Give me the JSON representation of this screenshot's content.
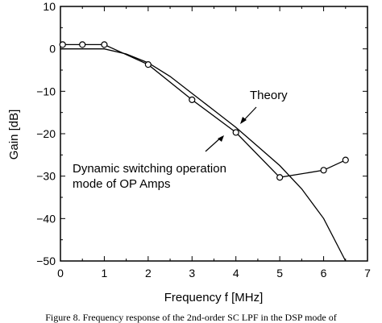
{
  "chart_data": {
    "type": "line",
    "xlabel": "Frequency f [MHz]",
    "ylabel": "Gain [dB]",
    "xlim": [
      0,
      7
    ],
    "ylim": [
      -50,
      10
    ],
    "xticks": [
      0,
      1,
      2,
      3,
      4,
      5,
      6,
      7
    ],
    "yticks": [
      10,
      0,
      -10,
      -20,
      -30,
      -40,
      -50
    ],
    "series": [
      {
        "name": "Theory",
        "marker": "none",
        "x": [
          0,
          0.5,
          1,
          1.5,
          2,
          2.5,
          3,
          3.5,
          4,
          4.5,
          5,
          5.5,
          6,
          6.5
        ],
        "y": [
          0,
          0,
          0,
          -1.2,
          -3.3,
          -6.5,
          -10.5,
          -14.5,
          -18.5,
          -23,
          -27.5,
          -33,
          -40,
          -50
        ]
      },
      {
        "name": "Dynamic switching operation mode of OP Amps",
        "marker": "circle",
        "x": [
          0.05,
          0.5,
          1,
          2,
          3,
          4,
          5,
          6,
          6.5
        ],
        "y": [
          1,
          1,
          1,
          -3.7,
          -12,
          -19.7,
          -30.3,
          -28.6,
          -26.2
        ]
      }
    ],
    "annotations": [
      {
        "text": "Theory"
      },
      {
        "text": "Dynamic switching operation"
      },
      {
        "text": "mode of OP Amps"
      }
    ]
  },
  "caption": "Figure 8. Frequency response of the 2nd-order SC LPF in the DSP mode of"
}
